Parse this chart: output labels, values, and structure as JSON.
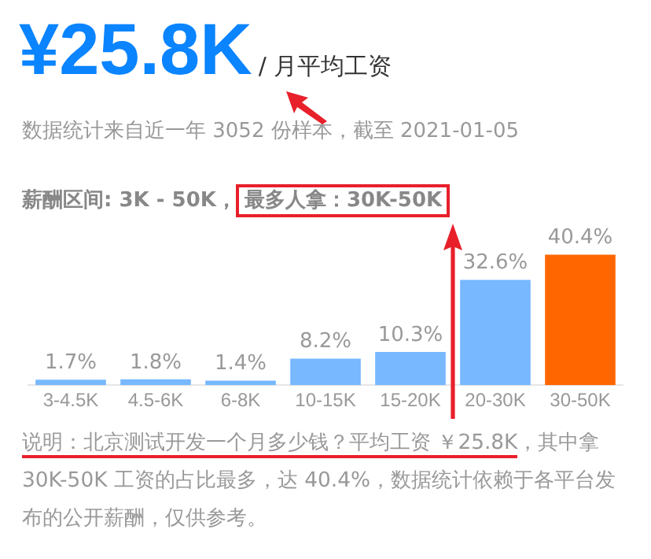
{
  "chart_data": {
    "type": "bar",
    "title": "¥25.8K",
    "subtitle": "/ 月平均工资",
    "annotations": [
      "数据统计来自近一年 3052 份样本，截至 2021-01-05",
      "薪酬区间: 3K - 50K，",
      "最多人拿：30K-50K",
      "说明：北京测试开发一个月多少钱？平均工资 ￥25.8K",
      "，其中拿 30K-50K 工资的占比最多，达 40.4%，数据统计依赖于各平台发布的公开薪酬，仅供参考。"
    ],
    "categories": [
      "3-4.5K",
      "4.5-6K",
      "6-8K",
      "10-15K",
      "15-20K",
      "20-30K",
      "30-50K"
    ],
    "values": [
      1.7,
      1.8,
      1.4,
      8.2,
      10.3,
      32.6,
      40.4
    ],
    "value_labels": [
      "1.7%",
      "1.8%",
      "1.4%",
      "8.2%",
      "10.3%",
      "32.6%",
      "40.4%"
    ],
    "colors": [
      "#77b8ff",
      "#77b8ff",
      "#77b8ff",
      "#77b8ff",
      "#77b8ff",
      "#77b8ff",
      "#ff6600"
    ],
    "grid": false,
    "legend": false
  }
}
